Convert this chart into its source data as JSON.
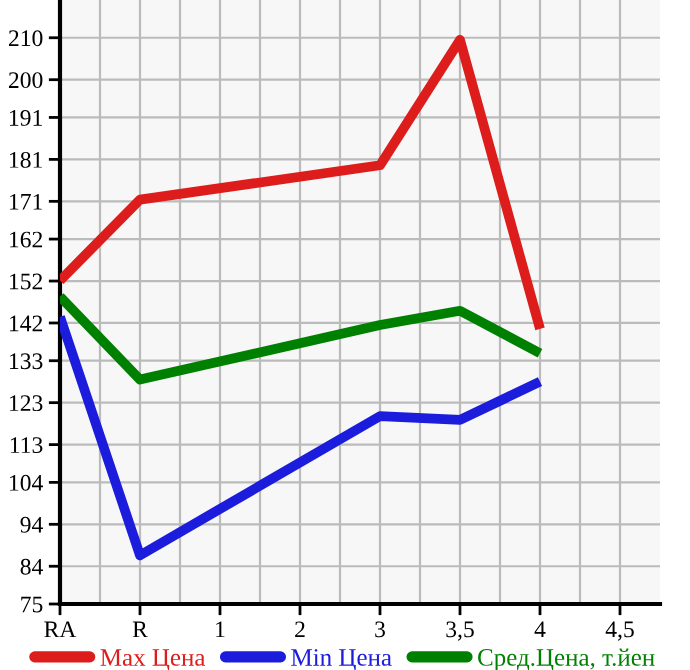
{
  "chart_data": {
    "type": "line",
    "categories": [
      "RA",
      "R",
      "1",
      "2",
      "3",
      "3,5",
      "4",
      "4,5"
    ],
    "series": [
      {
        "name": "Max Цена",
        "color": "#dd1c1c",
        "values": [
          152.1,
          171.4,
          null,
          null,
          179.6,
          209.5,
          140.6,
          null
        ]
      },
      {
        "name": "Min Цена",
        "color": "#1c1cdd",
        "values": [
          143.5,
          86.6,
          null,
          null,
          119.8,
          118.9,
          128.0,
          null
        ]
      },
      {
        "name": "Сред.Цена, т.йен",
        "color": "#008000",
        "values": [
          148.3,
          128.5,
          null,
          null,
          141.5,
          144.9,
          134.8,
          null
        ]
      }
    ],
    "ylim": [
      75,
      219
    ],
    "yticks": [
      75,
      84,
      94,
      104,
      113,
      123,
      133,
      142,
      152,
      162,
      171,
      181,
      191,
      200,
      210
    ],
    "grid": true,
    "legend": "bottom",
    "marker": "none",
    "line_style": "solid"
  }
}
